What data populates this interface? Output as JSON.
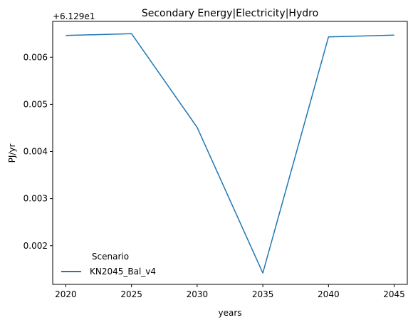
{
  "chart_data": {
    "type": "line",
    "title": "Secondary Energy|Electricity|Hydro",
    "xlabel": "years",
    "ylabel": "PJ/yr",
    "offset_text": "+6.129e1",
    "x": [
      2020,
      2025,
      2030,
      2035,
      2040,
      2045
    ],
    "xticks": [
      "2020",
      "2025",
      "2030",
      "2035",
      "2040",
      "2045"
    ],
    "yticks": [
      "0.002",
      "0.003",
      "0.004",
      "0.005",
      "0.006"
    ],
    "ytick_values": [
      0.002,
      0.003,
      0.004,
      0.005,
      0.006
    ],
    "ylim": [
      0.00118,
      0.00676
    ],
    "xlim": [
      2019.0,
      2046.0
    ],
    "grid": false,
    "legend": {
      "title": "Scenario",
      "placement": "lower-left"
    },
    "series": [
      {
        "name": "KN2045_Bal_v4",
        "color": "#1f77b4",
        "values": [
          0.00646,
          0.0065,
          0.00451,
          0.00142,
          0.00643,
          0.00647
        ]
      }
    ]
  }
}
